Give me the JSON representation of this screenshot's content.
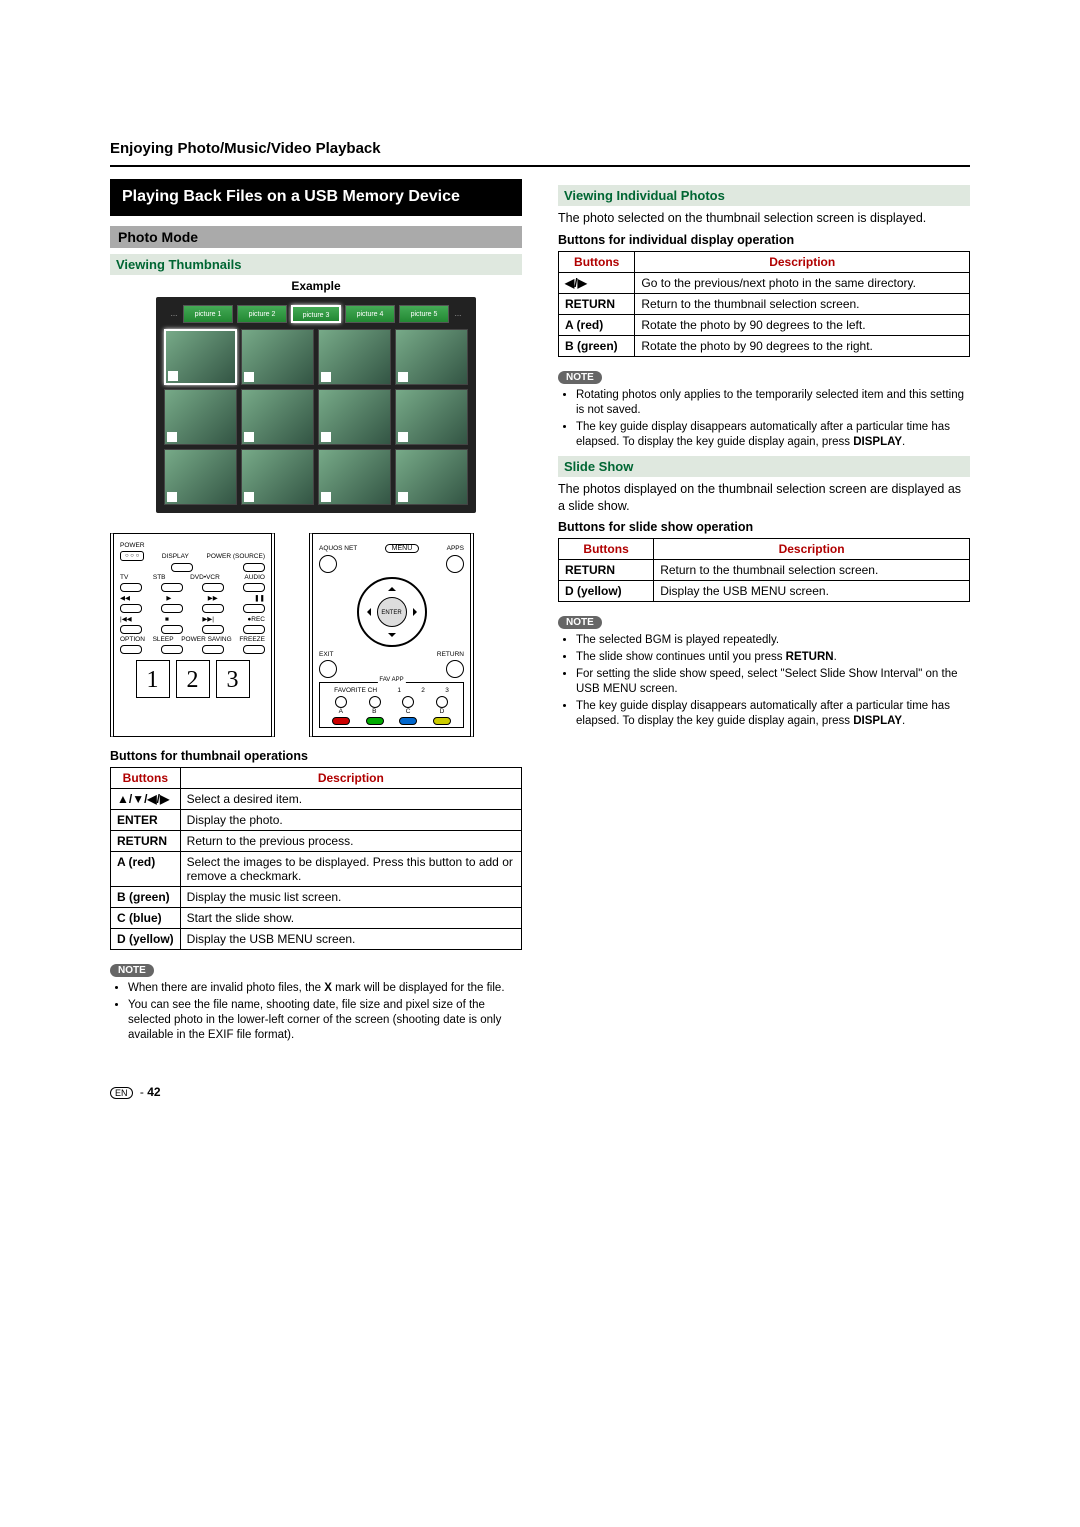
{
  "page": {
    "title": "Enjoying Photo/Music/Video Playback",
    "number": "42",
    "lang": "EN"
  },
  "section_heading": "Playing Back Files on a USB Memory Device",
  "photo_mode": {
    "title": "Photo Mode",
    "thumbnails_title": "Viewing Thumbnails",
    "example_label": "Example",
    "filmstrip": [
      "picture 1",
      "picture 2",
      "picture 3",
      "picture 4",
      "picture 5"
    ],
    "selected_film_index": 2
  },
  "remote_left": {
    "power": "POWER",
    "display": "DISPLAY",
    "power_source": "POWER (SOURCE)",
    "row2": [
      "TV",
      "STB",
      "DVD•VCR",
      "AUDIO"
    ],
    "transport": [
      "◀◀",
      "▶",
      "▶▶",
      "❚❚"
    ],
    "transport2": [
      "|◀◀",
      "■",
      "▶▶|",
      "●REC"
    ],
    "row4": [
      "OPTION",
      "SLEEP",
      "POWER SAVING",
      "FREEZE"
    ],
    "nums": [
      "1",
      "2",
      "3"
    ]
  },
  "remote_right": {
    "aquos": "AQUOS NET",
    "menu": "MENU",
    "apps": "APPS",
    "enter": "ENTER",
    "exit": "EXIT",
    "ret": "RETURN",
    "fav_label": "FAV APP",
    "favorite": "FAVORITE CH",
    "fav_nums": [
      "1",
      "2",
      "3"
    ],
    "color_labels": [
      "A",
      "B",
      "C",
      "D"
    ],
    "colors": [
      "#c00",
      "#0a0",
      "#06c",
      "#cc0"
    ]
  },
  "thumb_ops": {
    "title": "Buttons for thumbnail operations",
    "header": [
      "Buttons",
      "Description"
    ],
    "rows": [
      {
        "btn": "▲/▼/◀/▶",
        "desc": "Select a desired item."
      },
      {
        "btn": "ENTER",
        "desc": "Display the photo."
      },
      {
        "btn": "RETURN",
        "desc": "Return to the previous process."
      },
      {
        "btn": "A (red)",
        "desc": "Select the images to be displayed. Press this button to add or remove a checkmark."
      },
      {
        "btn": "B (green)",
        "desc": "Display the music list screen."
      },
      {
        "btn": "C (blue)",
        "desc": "Start the slide show."
      },
      {
        "btn": "D (yellow)",
        "desc": "Display the USB MENU screen."
      }
    ]
  },
  "note1": {
    "label": "NOTE",
    "items": [
      "When there are invalid photo files, the <b>X</b> mark will be displayed for the file.",
      "You can see the file name, shooting date, file size and pixel size of the selected photo in the lower-left corner of the screen (shooting date is only available in the EXIF file format)."
    ]
  },
  "individual": {
    "title": "Viewing Individual Photos",
    "intro": "The photo selected on the thumbnail selection screen is displayed.",
    "table_title": "Buttons for individual display operation",
    "header": [
      "Buttons",
      "Description"
    ],
    "rows": [
      {
        "btn": "◀/▶",
        "desc": "Go to the previous/next photo in the same directory."
      },
      {
        "btn": "RETURN",
        "desc": "Return to the thumbnail selection screen."
      },
      {
        "btn": "A (red)",
        "desc": "Rotate the photo by 90 degrees to the left."
      },
      {
        "btn": "B (green)",
        "desc": "Rotate the photo by 90 degrees to the right."
      }
    ]
  },
  "note2": {
    "label": "NOTE",
    "items": [
      "Rotating photos only applies to the temporarily selected item and this setting is not saved.",
      "The key guide display disappears automatically after a particular time has elapsed. To display the key guide display again, press <b>DISPLAY</b>."
    ]
  },
  "slide": {
    "title": "Slide Show",
    "intro": "The photos displayed on the thumbnail selection screen are displayed as a slide show.",
    "table_title": "Buttons for slide show operation",
    "header": [
      "Buttons",
      "Description"
    ],
    "rows": [
      {
        "btn": "RETURN",
        "desc": "Return to the thumbnail selection screen."
      },
      {
        "btn": "D (yellow)",
        "desc": "Display the USB MENU screen."
      }
    ]
  },
  "note3": {
    "label": "NOTE",
    "items": [
      "The selected BGM is played repeatedly.",
      "The slide show continues until you press <b>RETURN</b>.",
      "For setting the slide show speed, select \"Select Slide Show Interval\" on the USB MENU screen.",
      "The key guide display disappears automatically after a particular time has elapsed. To display the key guide display again, press <b>DISPLAY</b>."
    ]
  }
}
